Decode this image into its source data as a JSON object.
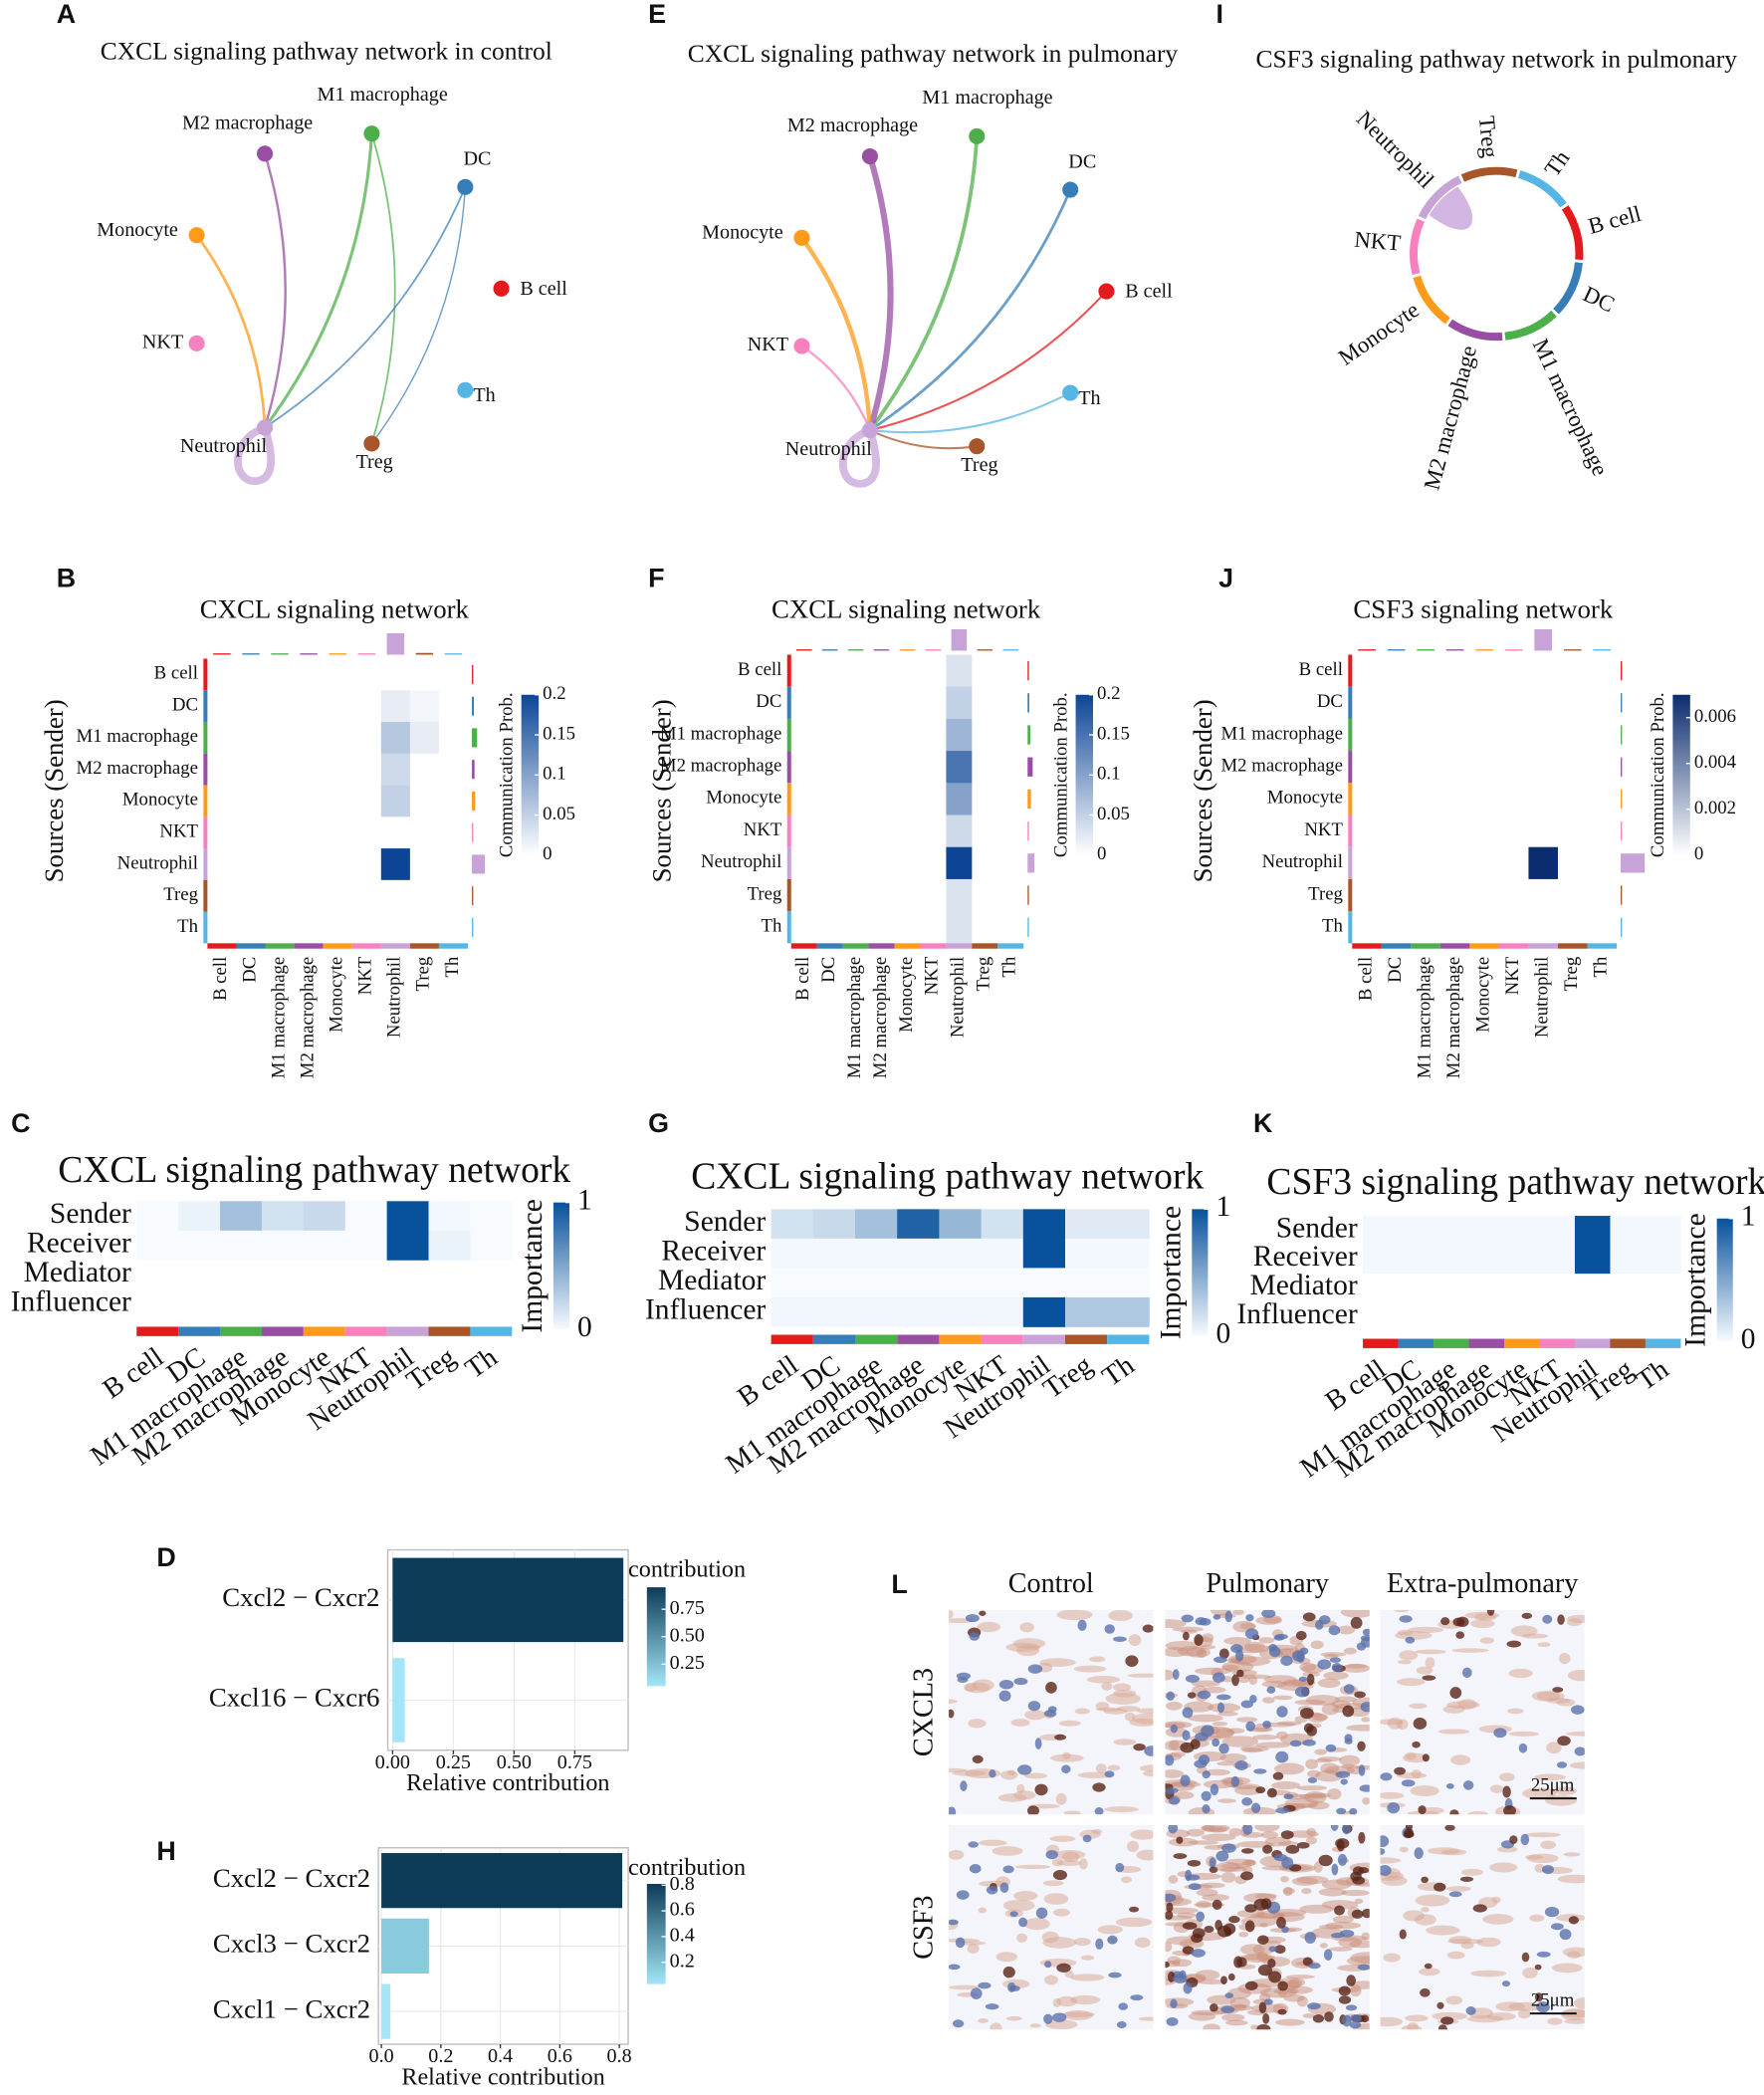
{
  "chart_data": [
    {
      "label": "A",
      "type": "network",
      "title": "CXCL signaling pathway network in  control",
      "nodes": [
        "B cell",
        "DC",
        "M1 macrophage",
        "M2 macrophage",
        "Monocyte",
        "NKT",
        "Neutrophil",
        "Treg",
        "Th"
      ],
      "colors": [
        "#e41a1c",
        "#377eb8",
        "#4daf4a",
        "#984ea3",
        "#ff9a1a",
        "#f781bf",
        "#c7a3d8",
        "#a65628",
        "#55b5e5"
      ],
      "edges": [
        {
          "source": "Monocyte",
          "target": "Neutrophil",
          "weight": 0.05
        },
        {
          "source": "M2 macrophage",
          "target": "Neutrophil",
          "weight": 0.04
        },
        {
          "source": "M1 macrophage",
          "target": "Neutrophil",
          "weight": 0.06
        },
        {
          "source": "M1 macrophage",
          "target": "Treg",
          "weight": 0.02
        },
        {
          "source": "DC",
          "target": "Neutrophil",
          "weight": 0.02
        },
        {
          "source": "DC",
          "target": "Treg",
          "weight": 0.01
        },
        {
          "source": "Neutrophil",
          "target": "Neutrophil",
          "weight": 0.2
        }
      ]
    },
    {
      "label": "E",
      "type": "network",
      "title": "CXCL signaling pathway network in pulmonary",
      "nodes": [
        "B cell",
        "DC",
        "M1 macrophage",
        "M2 macrophage",
        "Monocyte",
        "NKT",
        "Neutrophil",
        "Treg",
        "Th"
      ],
      "colors": [
        "#e41a1c",
        "#377eb8",
        "#4daf4a",
        "#984ea3",
        "#ff9a1a",
        "#f781bf",
        "#c7a3d8",
        "#a65628",
        "#55b5e5"
      ],
      "edges": [
        {
          "source": "B cell",
          "target": "Neutrophil",
          "weight": 0.03
        },
        {
          "source": "DC",
          "target": "Neutrophil",
          "weight": 0.05
        },
        {
          "source": "M1 macrophage",
          "target": "Neutrophil",
          "weight": 0.08
        },
        {
          "source": "M2 macrophage",
          "target": "Neutrophil",
          "weight": 0.15
        },
        {
          "source": "Monocyte",
          "target": "Neutrophil",
          "weight": 0.1
        },
        {
          "source": "NKT",
          "target": "Neutrophil",
          "weight": 0.04
        },
        {
          "source": "Treg",
          "target": "Neutrophil",
          "weight": 0.03
        },
        {
          "source": "Th",
          "target": "Neutrophil",
          "weight": 0.03
        },
        {
          "source": "Neutrophil",
          "target": "Neutrophil",
          "weight": 0.2
        }
      ]
    },
    {
      "label": "I",
      "type": "chord",
      "title": "CSF3 signaling pathway network in pulmonary",
      "nodes": [
        "B cell",
        "DC",
        "M1 macrophage",
        "M2 macrophage",
        "Monocyte",
        "NKT",
        "Neutrophil",
        "Treg",
        "Th"
      ],
      "colors": [
        "#e41a1c",
        "#377eb8",
        "#4daf4a",
        "#984ea3",
        "#ff9a1a",
        "#f781bf",
        "#c7a3d8",
        "#a65628",
        "#55b5e5"
      ],
      "edges": [
        {
          "source": "Neutrophil",
          "target": "Neutrophil",
          "weight": 0.007
        }
      ]
    },
    {
      "label": "B",
      "type": "heatmap",
      "title": "CXCL signaling network",
      "ylabel": "Sources (Sender)",
      "rows": [
        "B cell",
        "DC",
        "M1 macrophage",
        "M2 macrophage",
        "Monocyte",
        "NKT",
        "Neutrophil",
        "Treg",
        "Th"
      ],
      "columns": [
        "B cell",
        "DC",
        "M1 macrophage",
        "M2 macrophage",
        "Monocyte",
        "NKT",
        "Neutrophil",
        "Treg",
        "Th"
      ],
      "colors": [
        "#e41a1c",
        "#377eb8",
        "#4daf4a",
        "#984ea3",
        "#ff9a1a",
        "#f781bf",
        "#c7a3d8",
        "#a65628",
        "#55b5e5"
      ],
      "values": [
        [
          0,
          0,
          0,
          0,
          0,
          0,
          0,
          0,
          0
        ],
        [
          0,
          0,
          0,
          0,
          0,
          0,
          0.02,
          0.01,
          0
        ],
        [
          0,
          0,
          0,
          0,
          0,
          0,
          0.06,
          0.02,
          0
        ],
        [
          0,
          0,
          0,
          0,
          0,
          0,
          0.04,
          0,
          0
        ],
        [
          0,
          0,
          0,
          0,
          0,
          0,
          0.05,
          0,
          0
        ],
        [
          0,
          0,
          0,
          0,
          0,
          0,
          0,
          0,
          0
        ],
        [
          0,
          0,
          0,
          0,
          0,
          0,
          0.2,
          0,
          0
        ],
        [
          0,
          0,
          0,
          0,
          0,
          0,
          0,
          0,
          0
        ],
        [
          0,
          0,
          0,
          0,
          0,
          0,
          0,
          0,
          0
        ]
      ],
      "colorbar_label": "Communication Prob.",
      "clim": [
        0,
        0.2
      ],
      "cticks": [
        0,
        0.05,
        0.1,
        0.15,
        0.2
      ],
      "cmap": [
        "#ffffff",
        "#0c4596"
      ]
    },
    {
      "label": "F",
      "type": "heatmap",
      "title": "CXCL signaling network",
      "ylabel": "Sources (Sender)",
      "rows": [
        "B cell",
        "DC",
        "M1 macrophage",
        "M2 macrophage",
        "Monocyte",
        "NKT",
        "Neutrophil",
        "Treg",
        "Th"
      ],
      "columns": [
        "B cell",
        "DC",
        "M1 macrophage",
        "M2 macrophage",
        "Monocyte",
        "NKT",
        "Neutrophil",
        "Treg",
        "Th"
      ],
      "colors": [
        "#e41a1c",
        "#377eb8",
        "#4daf4a",
        "#984ea3",
        "#ff9a1a",
        "#f781bf",
        "#c7a3d8",
        "#a65628",
        "#55b5e5"
      ],
      "values": [
        [
          0,
          0,
          0,
          0,
          0,
          0,
          0.03,
          0,
          0
        ],
        [
          0,
          0,
          0,
          0,
          0,
          0,
          0.05,
          0,
          0
        ],
        [
          0,
          0,
          0,
          0,
          0,
          0,
          0.08,
          0,
          0
        ],
        [
          0,
          0,
          0,
          0,
          0,
          0,
          0.15,
          0,
          0
        ],
        [
          0,
          0,
          0,
          0,
          0,
          0,
          0.1,
          0,
          0
        ],
        [
          0,
          0,
          0,
          0,
          0,
          0,
          0.04,
          0,
          0
        ],
        [
          0,
          0,
          0,
          0,
          0,
          0,
          0.2,
          0,
          0
        ],
        [
          0,
          0,
          0,
          0,
          0,
          0,
          0.03,
          0,
          0
        ],
        [
          0,
          0,
          0,
          0,
          0,
          0,
          0.03,
          0,
          0
        ]
      ],
      "colorbar_label": "Communication Prob.",
      "clim": [
        0,
        0.2
      ],
      "cticks": [
        0,
        0.05,
        0.1,
        0.15,
        0.2
      ],
      "cmap": [
        "#ffffff",
        "#0c4596"
      ]
    },
    {
      "label": "J",
      "type": "heatmap",
      "title": "CSF3 signaling network",
      "ylabel": "Sources (Sender)",
      "rows": [
        "B cell",
        "DC",
        "M1 macrophage",
        "M2 macrophage",
        "Monocyte",
        "NKT",
        "Neutrophil",
        "Treg",
        "Th"
      ],
      "columns": [
        "B cell",
        "DC",
        "M1 macrophage",
        "M2 macrophage",
        "Monocyte",
        "NKT",
        "Neutrophil",
        "Treg",
        "Th"
      ],
      "colors": [
        "#e41a1c",
        "#377eb8",
        "#4daf4a",
        "#984ea3",
        "#ff9a1a",
        "#f781bf",
        "#c7a3d8",
        "#a65628",
        "#55b5e5"
      ],
      "values": [
        [
          0,
          0,
          0,
          0,
          0,
          0,
          0,
          0,
          0
        ],
        [
          0,
          0,
          0,
          0,
          0,
          0,
          0,
          0,
          0
        ],
        [
          0,
          0,
          0,
          0,
          0,
          0,
          0,
          0,
          0
        ],
        [
          0,
          0,
          0,
          0,
          0,
          0,
          0,
          0,
          0
        ],
        [
          0,
          0,
          0,
          0,
          0,
          0,
          0,
          0,
          0
        ],
        [
          0,
          0,
          0,
          0,
          0,
          0,
          0,
          0,
          0
        ],
        [
          0,
          0,
          0,
          0,
          0,
          0,
          0.007,
          0,
          0
        ],
        [
          0,
          0,
          0,
          0,
          0,
          0,
          0,
          0,
          0
        ],
        [
          0,
          0,
          0,
          0,
          0,
          0,
          0,
          0,
          0
        ]
      ],
      "colorbar_label": "Communication Prob.",
      "clim": [
        0,
        0.007
      ],
      "cticks": [
        0,
        0.002,
        0.004,
        0.006
      ],
      "cmap": [
        "#ffffff",
        "#0b2c6e"
      ]
    },
    {
      "label": "C",
      "type": "importance",
      "title": "CXCL signaling pathway network",
      "rows": [
        "Sender",
        "Receiver",
        "Mediator",
        "Influencer"
      ],
      "columns": [
        "B cell",
        "DC",
        "M1 macrophage",
        "M2 macrophage",
        "Monocyte",
        "NKT",
        "Neutrophil",
        "Treg",
        "Th"
      ],
      "colors": [
        "#e41a1c",
        "#377eb8",
        "#4daf4a",
        "#984ea3",
        "#ff9a1a",
        "#f781bf",
        "#c7a3d8",
        "#a65628",
        "#55b5e5"
      ],
      "values": [
        [
          0,
          0.05,
          0.35,
          0.15,
          0.2,
          0,
          1,
          0.02,
          0
        ],
        [
          0,
          0,
          0,
          0,
          0,
          0,
          1,
          0.05,
          0
        ],
        [
          null,
          null,
          null,
          null,
          null,
          null,
          null,
          null,
          null
        ],
        [
          null,
          null,
          null,
          null,
          null,
          null,
          null,
          null,
          null
        ]
      ],
      "colorbar_label": "Importance",
      "clim": [
        0,
        1
      ],
      "cticks": [
        0,
        1
      ],
      "cmap": [
        "#f7fbff",
        "#08519c"
      ]
    },
    {
      "label": "G",
      "type": "importance",
      "title": "CXCL signaling pathway network",
      "rows": [
        "Sender",
        "Receiver",
        "Mediator",
        "Influencer"
      ],
      "columns": [
        "B cell",
        "DC",
        "M1 macrophage",
        "M2 macrophage",
        "Monocyte",
        "NKT",
        "Neutrophil",
        "Treg",
        "Th"
      ],
      "colors": [
        "#e41a1c",
        "#377eb8",
        "#4daf4a",
        "#984ea3",
        "#ff9a1a",
        "#f781bf",
        "#c7a3d8",
        "#a65628",
        "#55b5e5"
      ],
      "values": [
        [
          0.15,
          0.2,
          0.35,
          0.9,
          0.4,
          0.15,
          1,
          0.1,
          0.1
        ],
        [
          0.02,
          0.02,
          0.02,
          0.02,
          0.02,
          0.02,
          1,
          0.02,
          0.02
        ],
        [
          0,
          0,
          0,
          0,
          0,
          0,
          0,
          0,
          0
        ],
        [
          0.03,
          0.03,
          0.03,
          0.03,
          0.03,
          0.03,
          1,
          0.3,
          0.3
        ]
      ],
      "colorbar_label": "Importance",
      "clim": [
        0,
        1
      ],
      "cticks": [
        0,
        1
      ],
      "cmap": [
        "#f7fbff",
        "#08519c"
      ]
    },
    {
      "label": "K",
      "type": "importance",
      "title": "CSF3 signaling pathway network",
      "rows": [
        "Sender",
        "Receiver",
        "Mediator",
        "Influencer"
      ],
      "columns": [
        "B cell",
        "DC",
        "M1 macrophage",
        "M2 macrophage",
        "Monocyte",
        "NKT",
        "Neutrophil",
        "Treg",
        "Th"
      ],
      "colors": [
        "#e41a1c",
        "#377eb8",
        "#4daf4a",
        "#984ea3",
        "#ff9a1a",
        "#f781bf",
        "#c7a3d8",
        "#a65628",
        "#55b5e5"
      ],
      "values": [
        [
          0.02,
          0.02,
          0.02,
          0.02,
          0.02,
          0.02,
          1,
          0.02,
          0.02
        ],
        [
          0.02,
          0.02,
          0.02,
          0.02,
          0.02,
          0.02,
          1,
          0.02,
          0.02
        ],
        [
          null,
          null,
          null,
          null,
          null,
          null,
          null,
          null,
          null
        ],
        [
          null,
          null,
          null,
          null,
          null,
          null,
          null,
          null,
          null
        ]
      ],
      "colorbar_label": "Importance",
      "clim": [
        0,
        1
      ],
      "cticks": [
        0,
        1
      ],
      "cmap": [
        "#f7fbff",
        "#08519c"
      ]
    },
    {
      "label": "D",
      "type": "bar",
      "categories": [
        "Cxcl2  − Cxcr2",
        "Cxcl16  − Cxcr6"
      ],
      "values": [
        0.95,
        0.05
      ],
      "xlim": [
        -0.02,
        0.97
      ],
      "xticks": [
        {
          "value": 0,
          "label": "0.00"
        },
        {
          "value": 0.25,
          "label": "0.25"
        },
        {
          "value": 0.5,
          "label": "0.50"
        },
        {
          "value": 0.75,
          "label": "0.75"
        }
      ],
      "xlabel": "Relative contribution",
      "legend_title": "contribution",
      "clim": [
        0.05,
        0.95
      ],
      "cticks": [
        {
          "value": 0.25,
          "label": "0.25"
        },
        {
          "value": 0.5,
          "label": "0.50"
        },
        {
          "value": 0.75,
          "label": "0.75"
        }
      ],
      "colors": [
        "#a3e6f7",
        "#0d3c58"
      ],
      "grid": true
    },
    {
      "label": "H",
      "type": "bar",
      "categories": [
        "Cxcl2  − Cxcr2",
        "Cxcl3  − Cxcr2",
        "Cxcl1  − Cxcr2"
      ],
      "values": [
        0.81,
        0.16,
        0.03
      ],
      "xlim": [
        -0.01,
        0.83
      ],
      "xticks": [
        {
          "value": 0,
          "label": "0.0"
        },
        0.2,
        0.4,
        0.6,
        0.8
      ],
      "xlabel": "Relative contribution",
      "legend_title": "contribution",
      "clim": [
        0.03,
        0.81
      ],
      "cticks": [
        0.2,
        0.4,
        0.6,
        0.8
      ],
      "colors": [
        "#a3e6f7",
        "#0d3c58"
      ],
      "grid": true
    },
    {
      "label": "L",
      "type": "image-grid",
      "columns": [
        "Control",
        "Pulmonary",
        "Extra-pulmonary"
      ],
      "rows": [
        "CXCL3",
        "CSF3"
      ],
      "scale_bar": "25μm"
    }
  ]
}
